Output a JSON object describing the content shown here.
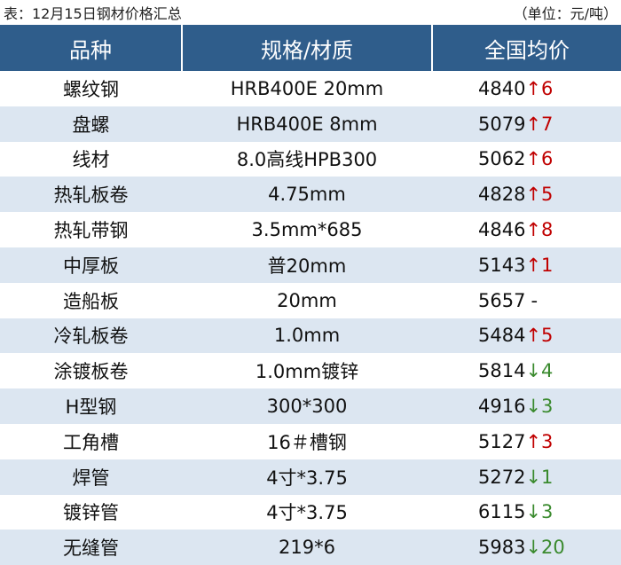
{
  "caption": {
    "title": "表：12月15日钢材价格汇总",
    "unit": "（单位：元/吨）"
  },
  "table": {
    "header": [
      "品种",
      "规格/材质",
      "全国均价"
    ],
    "rows": [
      [
        "螺纹钢",
        "HRB400E 20mm",
        "4840",
        "↑6"
      ],
      [
        "盘螺",
        "HRB400E 8mm",
        "5079",
        "↑7"
      ],
      [
        "线材",
        "8.0高线HPB300",
        "5062",
        "↑6"
      ],
      [
        "热轧板卷",
        "4.75mm",
        "4828",
        "↑5"
      ],
      [
        "热轧带钢",
        "3.5mm*685",
        "4846",
        "↑8"
      ],
      [
        "中厚板",
        "普20mm",
        "5143",
        "↑1"
      ],
      [
        "造船板",
        "20mm",
        "5657",
        "-"
      ],
      [
        "冷轧板卷",
        "1.0mm",
        "5484",
        "↑5"
      ],
      [
        "涂镀板卷",
        "1.0mm镀锌",
        "5814",
        "↓4"
      ],
      [
        "H型钢",
        "300*300",
        "4916",
        "↓3"
      ],
      [
        "工角槽",
        "16＃槽钢",
        "5127",
        "↑3"
      ],
      [
        "焊管",
        "4寸*3.75",
        "5272",
        "↓1"
      ],
      [
        "镀锌管",
        "4寸*3.75",
        "6115",
        "↓3"
      ],
      [
        "无缝管",
        "219*6",
        "5983",
        "↓20"
      ]
    ]
  }
}
